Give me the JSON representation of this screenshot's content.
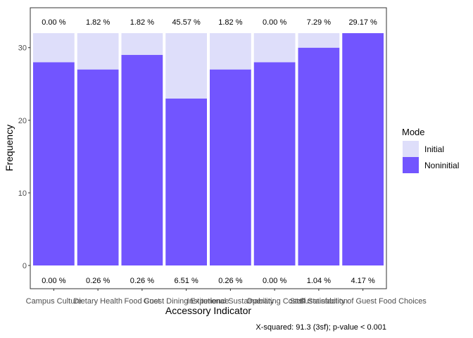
{
  "chart_data": {
    "type": "bar",
    "stacked": true,
    "categories": [
      "Campus Culture",
      "Dietary Health",
      "Food Cost",
      "Guest Dining Experience",
      "Institutional Sustainability",
      "Operating Costs",
      "Staff Satisfaction",
      "Sustainability of Guest Food Choices"
    ],
    "series": [
      {
        "name": "Noninitial",
        "color": "#7255ff",
        "values": [
          28,
          27,
          29,
          23,
          27,
          28,
          30,
          32
        ]
      },
      {
        "name": "Initial",
        "color": "#dedefa",
        "values": [
          4,
          5,
          3,
          9,
          5,
          4,
          2,
          0
        ]
      }
    ],
    "top_labels": [
      "0.00 %",
      "1.82 %",
      "1.82 %",
      "45.57 %",
      "1.82 %",
      "0.00 %",
      "7.29 %",
      "29.17 %"
    ],
    "bottom_labels": [
      "0.00 %",
      "0.26 %",
      "0.26 %",
      "6.51 %",
      "0.26 %",
      "0.00 %",
      "1.04 %",
      "4.17 %"
    ],
    "xlabel": "Accessory Indicator",
    "ylabel": "Frequency",
    "yticks": [
      0,
      10,
      20,
      30
    ],
    "ylim": [
      -3.2,
      35.5
    ],
    "grid": false,
    "legend": {
      "title": "Mode",
      "placement": "right",
      "entries": [
        "Initial",
        "Noninitial"
      ]
    },
    "caption": "X-squared: 91.3 (3sf); p-value < 0.001"
  }
}
